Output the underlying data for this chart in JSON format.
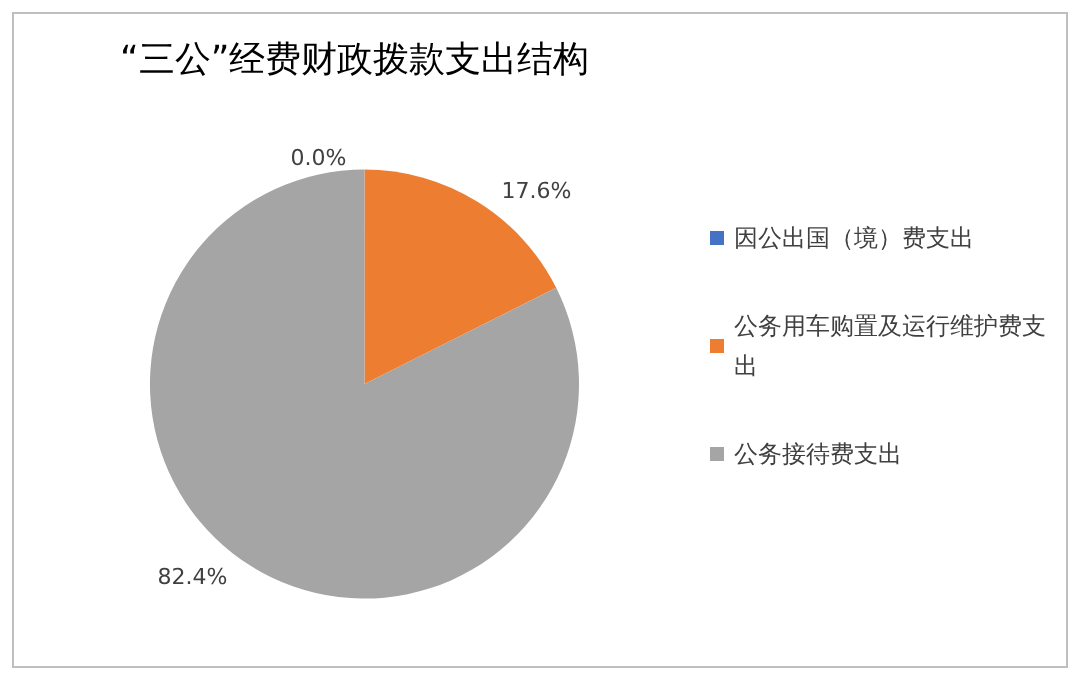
{
  "chart_data": {
    "type": "pie",
    "title": "“三公”经费财政拨款支出结构",
    "categories": [
      "因公出国（境）费支出",
      "公务用车购置及运行维护费支出",
      "公务接待费支出"
    ],
    "values": [
      0.0,
      17.6,
      82.4
    ],
    "colors": [
      "#4472c4",
      "#ed7d31",
      "#a5a5a5"
    ],
    "value_labels": [
      "0.0%",
      "17.6%",
      "82.4%"
    ],
    "legend": "right"
  }
}
